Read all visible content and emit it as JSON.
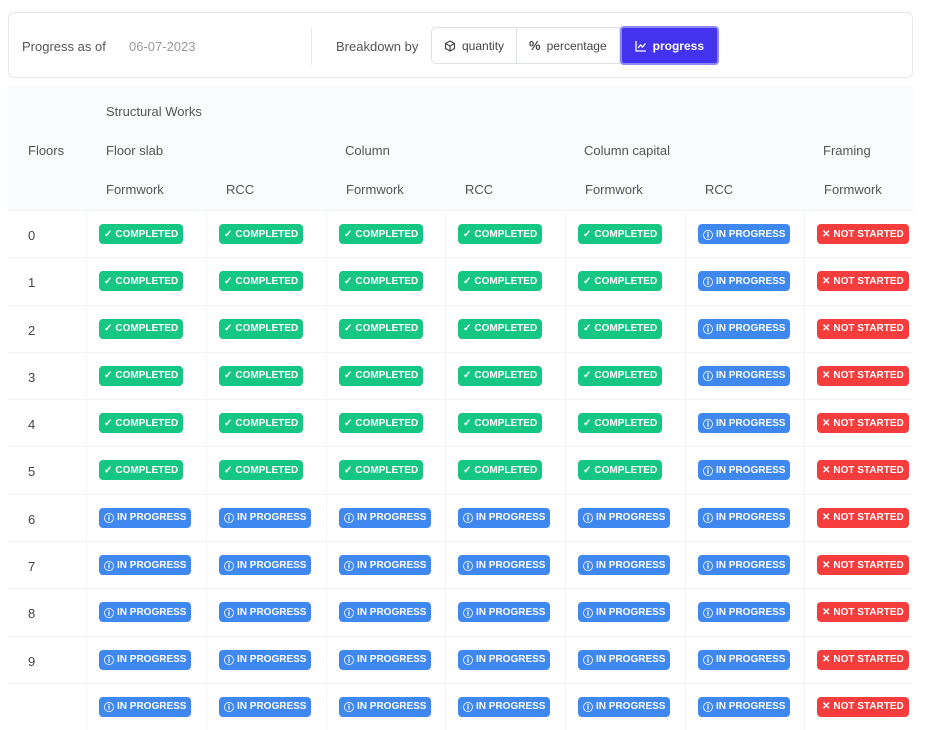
{
  "toolbar": {
    "progress_label": "Progress as of",
    "date": "06-07-2023",
    "breakdown_label": "Breakdown by",
    "options": [
      {
        "label": "quantity",
        "icon": "cube-icon"
      },
      {
        "label": "percentage",
        "icon": "percent-icon"
      },
      {
        "label": "progress",
        "icon": "chart-line-icon",
        "active": true
      }
    ]
  },
  "table": {
    "group": "Structural Works",
    "floors_header": "Floors",
    "categories": [
      "Floor slab",
      "Column",
      "Column capital",
      "Framing"
    ],
    "subcolumns": [
      "Formwork",
      "RCC",
      "Formwork",
      "RCC",
      "Formwork",
      "RCC",
      "Formwork"
    ],
    "status_labels": {
      "c": "COMPLETED",
      "i": "IN PROGRESS",
      "n": "NOT STARTED"
    },
    "colors": {
      "completed": "#16c784",
      "in_progress": "#3f88f0",
      "not_started": "#f53d3d",
      "active_button": "#4433ee"
    },
    "rows": [
      {
        "floor": "0",
        "s": [
          "c",
          "c",
          "c",
          "c",
          "c",
          "i",
          "n"
        ]
      },
      {
        "floor": "1",
        "s": [
          "c",
          "c",
          "c",
          "c",
          "c",
          "i",
          "n"
        ]
      },
      {
        "floor": "2",
        "s": [
          "c",
          "c",
          "c",
          "c",
          "c",
          "i",
          "n"
        ]
      },
      {
        "floor": "3",
        "s": [
          "c",
          "c",
          "c",
          "c",
          "c",
          "i",
          "n"
        ]
      },
      {
        "floor": "4",
        "s": [
          "c",
          "c",
          "c",
          "c",
          "c",
          "i",
          "n"
        ]
      },
      {
        "floor": "5",
        "s": [
          "c",
          "c",
          "c",
          "c",
          "c",
          "i",
          "n"
        ]
      },
      {
        "floor": "6",
        "s": [
          "i",
          "i",
          "i",
          "i",
          "i",
          "i",
          "n"
        ]
      },
      {
        "floor": "7",
        "s": [
          "i",
          "i",
          "i",
          "i",
          "i",
          "i",
          "n"
        ]
      },
      {
        "floor": "8",
        "s": [
          "i",
          "i",
          "i",
          "i",
          "i",
          "i",
          "n"
        ]
      },
      {
        "floor": "9",
        "s": [
          "i",
          "i",
          "i",
          "i",
          "i",
          "i",
          "n"
        ]
      },
      {
        "floor": "",
        "s": [
          "i",
          "i",
          "i",
          "i",
          "i",
          "i",
          "n"
        ]
      }
    ]
  }
}
